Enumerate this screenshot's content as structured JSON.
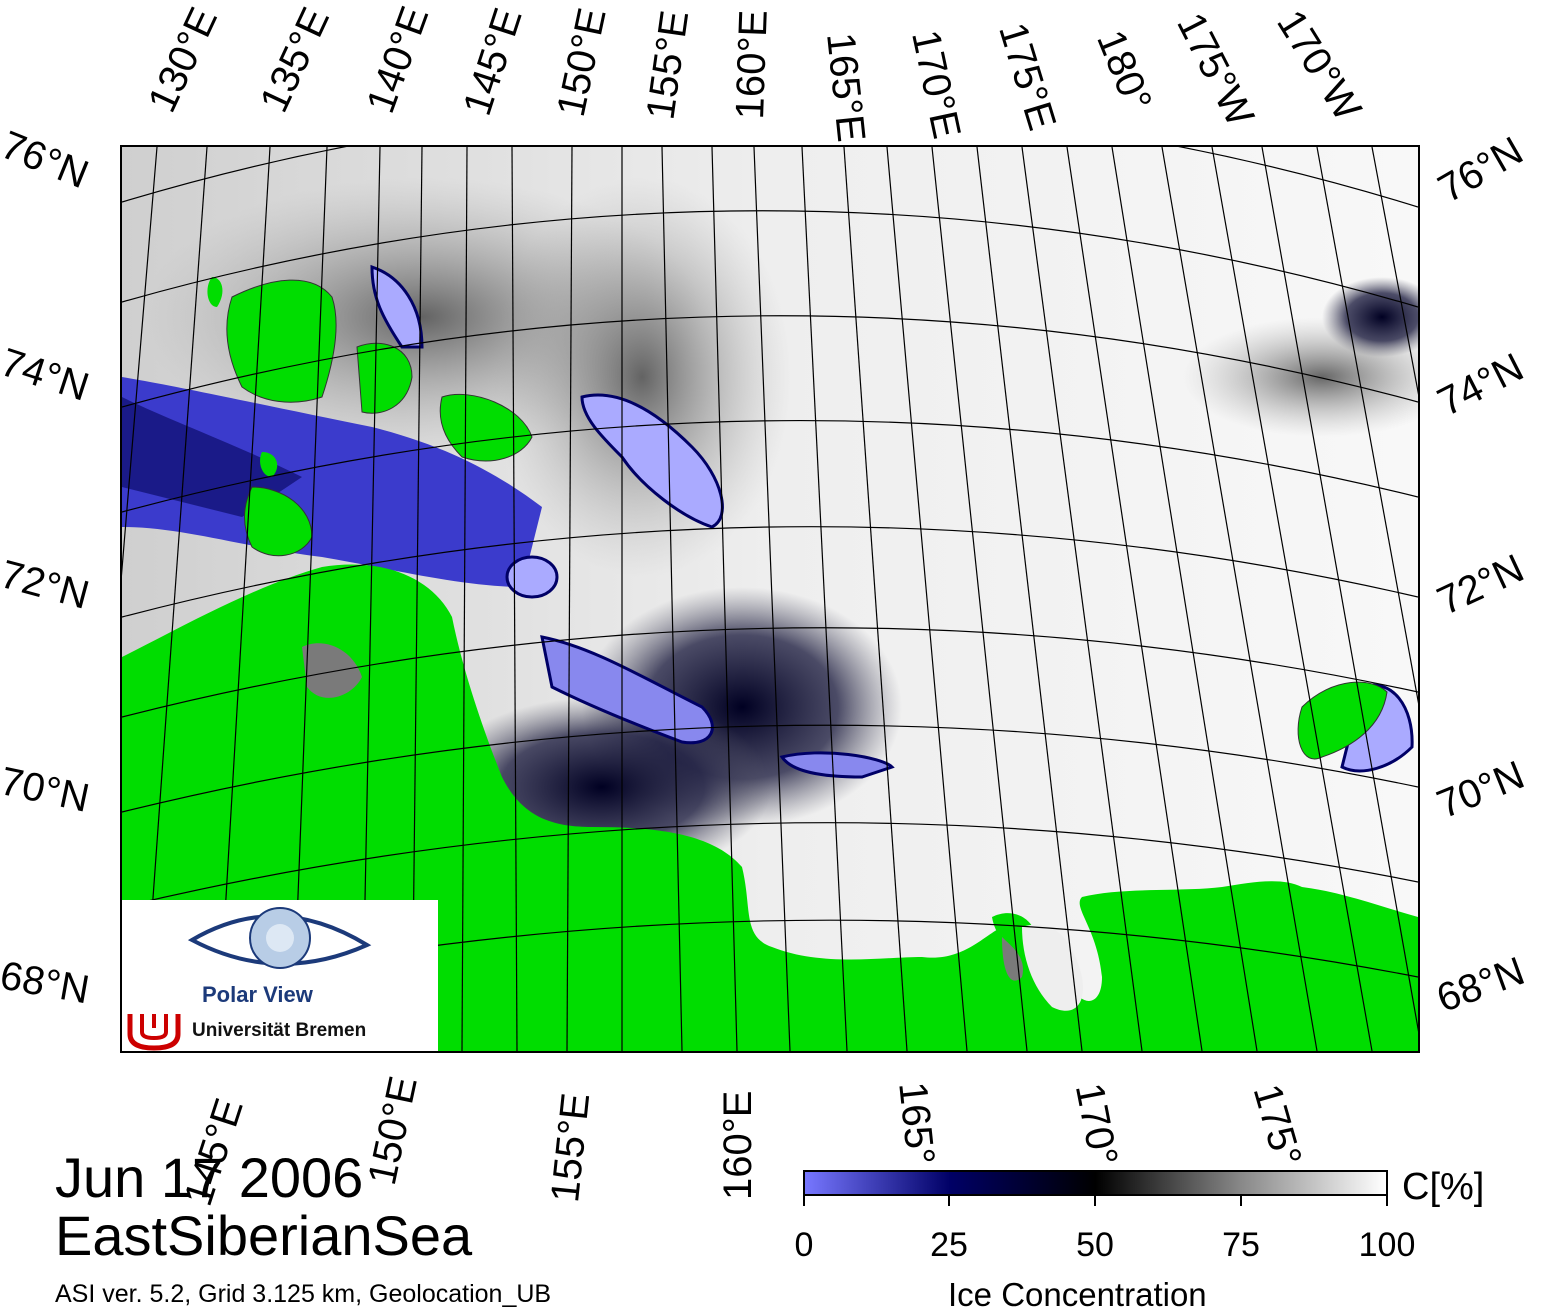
{
  "title": {
    "date": "Jun 17 2006",
    "region": "EastSiberianSea",
    "meta": "ASI ver. 5.2,  Grid 3.125 km, Geolocation_UB"
  },
  "map": {
    "top_lon_labels": [
      "130°E",
      "135°E",
      "140°E",
      "145°E",
      "150°E",
      "155°E",
      "160°E",
      "165°E",
      "170°E",
      "175°E",
      "180°",
      "175°W",
      "170°W"
    ],
    "bottom_lon_labels": [
      "145°E",
      "150°E",
      "155°E",
      "160°E",
      "165°",
      "170°",
      "175°"
    ],
    "left_lat_labels": [
      "76°N",
      "74°N",
      "72°N",
      "70°N",
      "68°N"
    ],
    "right_lat_labels": [
      "76°N",
      "74°N",
      "72°N",
      "70°N",
      "68°N"
    ],
    "colors": {
      "land": "#00dd00",
      "land_mask_gray": "#808080",
      "open_water": "#aaaaff",
      "low_ice": "#3333cc",
      "mid_ice": "#000055",
      "high_ice": "#ffffff"
    }
  },
  "colorbar": {
    "unit": "C[%]",
    "ticks": [
      "0",
      "25",
      "50",
      "75",
      "100"
    ],
    "title": "Ice Concentration",
    "stops": [
      "#7777ff",
      "#000066",
      "#000000",
      "#888888",
      "#ffffff"
    ]
  },
  "logo": {
    "title": "Polar View",
    "institution": "Universität Bremen"
  }
}
